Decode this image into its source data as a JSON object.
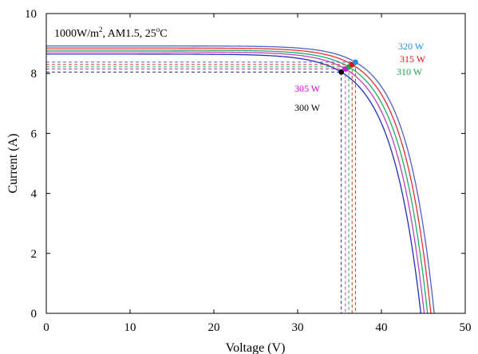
{
  "chart_data": {
    "type": "line",
    "title": "",
    "xlabel": "Voltage (V)",
    "ylabel": "Current (A)",
    "xlim": [
      0,
      50
    ],
    "ylim": [
      0,
      10
    ],
    "xticks": [
      0,
      10,
      20,
      30,
      40,
      50
    ],
    "yticks": [
      0,
      2,
      4,
      6,
      8,
      10
    ],
    "grid": false,
    "annotation": {
      "text": "1000W/m², AM1.5, 25°C",
      "irradiance": "1000W/m",
      "exponent_2": "2",
      "spectrum_temp": ", AM1.5, 25",
      "degree": "o",
      "unit": "C"
    },
    "series": [
      {
        "name": "300 W",
        "color": "#000000",
        "curve_color": "#1f2fb5",
        "isc": 8.65,
        "voc": 44.7,
        "vmp": 35.2,
        "imp": 8.05
      },
      {
        "name": "305 W",
        "color": "#e000e0",
        "curve_color": "#c040c0",
        "isc": 8.72,
        "voc": 45.1,
        "vmp": 35.7,
        "imp": 8.15
      },
      {
        "name": "310 W",
        "color": "#1aa04a",
        "curve_color": "#22aa66",
        "isc": 8.78,
        "voc": 45.5,
        "vmp": 36.1,
        "imp": 8.22
      },
      {
        "name": "315 W",
        "color": "#e01010",
        "curve_color": "#e03030",
        "isc": 8.85,
        "voc": 45.9,
        "vmp": 36.5,
        "imp": 8.3
      },
      {
        "name": "320 W",
        "color": "#1f8fdc",
        "curve_color": "#5060c8",
        "isc": 8.92,
        "voc": 46.3,
        "vmp": 36.9,
        "imp": 8.38
      }
    ]
  }
}
